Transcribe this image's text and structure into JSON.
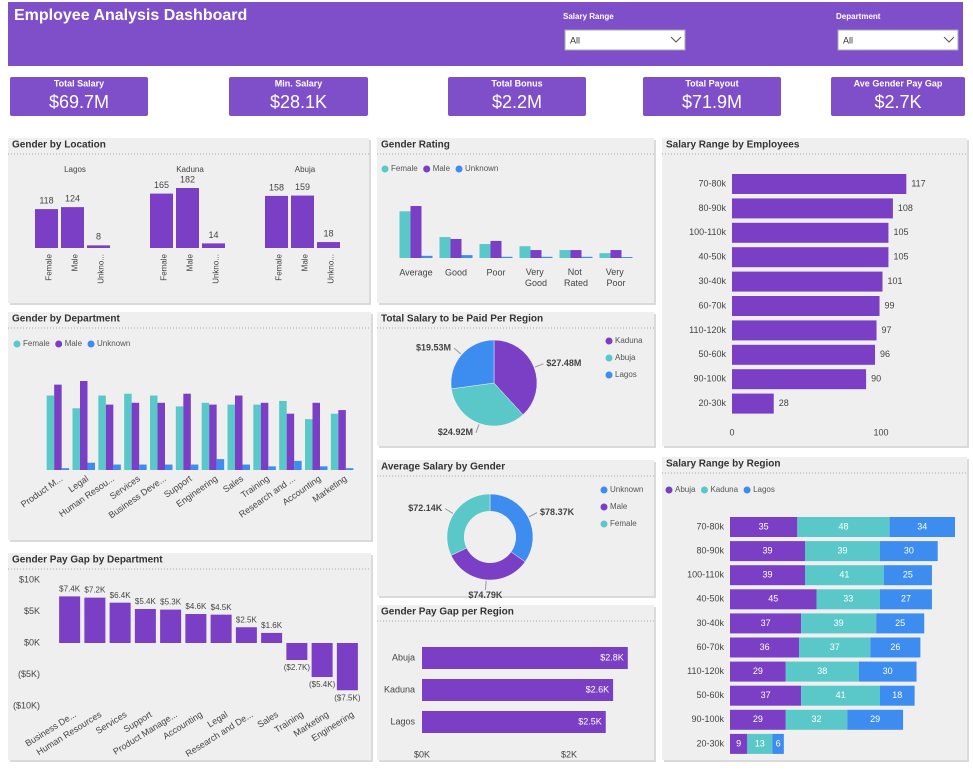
{
  "header": {
    "title": "Employee Analysis Dashboard",
    "filters": [
      {
        "label": "Salary Range",
        "value": "All"
      },
      {
        "label": "Department",
        "value": "All"
      }
    ]
  },
  "kpis": [
    {
      "label": "Total Salary",
      "value": "$69.7M"
    },
    {
      "label": "Min. Salary",
      "value": "$28.1K"
    },
    {
      "label": "Total Bonus",
      "value": "$2.2M"
    },
    {
      "label": "Total Payout",
      "value": "$71.9M"
    },
    {
      "label": "Ave Gender Pay Gap",
      "value": "$2.7K"
    }
  ],
  "chart_data": [
    {
      "type": "bar",
      "title": "Gender by Location",
      "categories": [
        "Female",
        "Male",
        "Unkno..."
      ],
      "color": "#7b3fc6",
      "facets": [
        {
          "name": "Lagos",
          "values": [
            118,
            124,
            8
          ]
        },
        {
          "name": "Kaduna",
          "values": [
            165,
            182,
            14
          ]
        },
        {
          "name": "Abuja",
          "values": [
            158,
            159,
            18
          ]
        }
      ]
    },
    {
      "type": "bar",
      "title": "Gender Rating",
      "categories": [
        "Average",
        "Good",
        "Poor",
        "Very Good",
        "Not Rated",
        "Very Poor"
      ],
      "series": [
        {
          "name": "Female",
          "color": "#5ac8c8",
          "values": [
            194,
            87,
            58,
            49,
            33,
            20
          ]
        },
        {
          "name": "Male",
          "color": "#7b3fc6",
          "values": [
            216,
            79,
            71,
            33,
            33,
            33
          ]
        },
        {
          "name": "Unknown",
          "color": "#3d8cf0",
          "values": [
            9,
            12,
            5,
            5,
            5,
            4
          ]
        }
      ]
    },
    {
      "type": "bar",
      "orientation": "horizontal",
      "title": "Salary Range by Employees",
      "categories": [
        "70-80k",
        "80-90k",
        "100-110k",
        "40-50k",
        "30-40k",
        "60-70k",
        "110-120k",
        "50-60k",
        "90-100k",
        "20-30k"
      ],
      "values": [
        117,
        108,
        105,
        105,
        101,
        99,
        97,
        96,
        90,
        28
      ],
      "color": "#7b3fc6",
      "xlim": [
        0,
        150
      ],
      "xticks": [
        0,
        100
      ]
    },
    {
      "type": "bar",
      "title": "Gender by Department",
      "categories": [
        "Product M...",
        "Legal",
        "Human Resou...",
        "Services",
        "Business Deve...",
        "Support",
        "Engineering",
        "Sales",
        "Training",
        "Research and ...",
        "Accounting",
        "Marketing"
      ],
      "series": [
        {
          "name": "Female",
          "color": "#5ac8c8",
          "values": [
            41,
            34,
            41,
            42,
            41,
            35,
            37,
            36,
            36,
            38,
            28,
            31
          ]
        },
        {
          "name": "Male",
          "color": "#7b3fc6",
          "values": [
            47,
            49,
            36,
            37,
            37,
            42,
            36,
            41,
            37,
            31,
            37,
            33
          ]
        },
        {
          "name": "Unknown",
          "color": "#3d8cf0",
          "values": [
            1,
            4,
            3,
            3,
            3,
            3,
            6,
            3,
            2,
            5,
            2,
            1
          ]
        }
      ]
    },
    {
      "type": "pie",
      "title": "Total Salary to be Paid Per Region",
      "categories": [
        "Kaduna",
        "Abuja",
        "Lagos"
      ],
      "values": [
        27.48,
        24.92,
        19.53
      ],
      "value_labels": [
        "$27.48M",
        "$24.92M",
        "$19.53M"
      ],
      "colors": [
        "#7b3fc6",
        "#5ac8c8",
        "#3d8cf0"
      ]
    },
    {
      "type": "donut",
      "title": "Average Salary by Gender",
      "categories": [
        "Unknown",
        "Male",
        "Female"
      ],
      "values": [
        78.37,
        74.79,
        72.14
      ],
      "value_labels": [
        "$78.37K",
        "$74.79K",
        "$72.14K"
      ],
      "colors": [
        "#3d8cf0",
        "#7b3fc6",
        "#5ac8c8"
      ]
    },
    {
      "type": "bar",
      "orientation": "horizontal",
      "stacked": true,
      "title": "Salary Range by Region",
      "categories": [
        "70-80k",
        "80-90k",
        "100-110k",
        "40-50k",
        "30-40k",
        "60-70k",
        "110-120k",
        "50-60k",
        "90-100k",
        "20-30k"
      ],
      "series": [
        {
          "name": "Abuja",
          "color": "#7b3fc6",
          "values": [
            35,
            39,
            39,
            45,
            37,
            36,
            29,
            37,
            29,
            9
          ]
        },
        {
          "name": "Kaduna",
          "color": "#5ac8c8",
          "values": [
            48,
            39,
            41,
            33,
            39,
            37,
            38,
            41,
            32,
            13
          ]
        },
        {
          "name": "Lagos",
          "color": "#3d8cf0",
          "values": [
            34,
            30,
            25,
            27,
            25,
            26,
            30,
            18,
            29,
            6
          ]
        }
      ]
    },
    {
      "type": "bar",
      "title": "Gender Pay Gap by Department",
      "categories": [
        "Business De...",
        "Human Resources",
        "Services",
        "Support",
        "Product Manage...",
        "Accounting",
        "Legal",
        "Research and De...",
        "Sales",
        "Training",
        "Marketing",
        "Engineering"
      ],
      "values": [
        7400,
        7200,
        6400,
        5400,
        5300,
        4600,
        4500,
        2500,
        1600,
        -2700,
        -5400,
        -7500
      ],
      "value_labels": [
        "$7.4K",
        "$7.2K",
        "$6.4K",
        "$5.4K",
        "$5.3K",
        "$4.6K",
        "$4.5K",
        "$2.5K",
        "$1.6K",
        "($2.7K)",
        "($5.4K)",
        "($7.5K)"
      ],
      "color": "#7b3fc6",
      "ylim": [
        -10000,
        10000
      ],
      "yticks": [
        {
          "value": 10000,
          "label": "$10K"
        },
        {
          "value": 5000,
          "label": "$5K"
        },
        {
          "value": 0,
          "label": "$0K"
        },
        {
          "value": -5000,
          "label": "($5K)"
        },
        {
          "value": -10000,
          "label": "($10K)"
        }
      ]
    },
    {
      "type": "bar",
      "orientation": "horizontal",
      "title": "Gender Pay Gap per Region",
      "categories": [
        "Abuja",
        "Kaduna",
        "Lagos"
      ],
      "values": [
        2800,
        2600,
        2500
      ],
      "value_labels": [
        "$2.8K",
        "$2.6K",
        "$2.5K"
      ],
      "color": "#7b3fc6",
      "xlim": [
        0,
        3000
      ],
      "xticks": [
        {
          "value": 0,
          "label": "$0K"
        },
        {
          "value": 2000,
          "label": "$2K"
        }
      ]
    }
  ]
}
